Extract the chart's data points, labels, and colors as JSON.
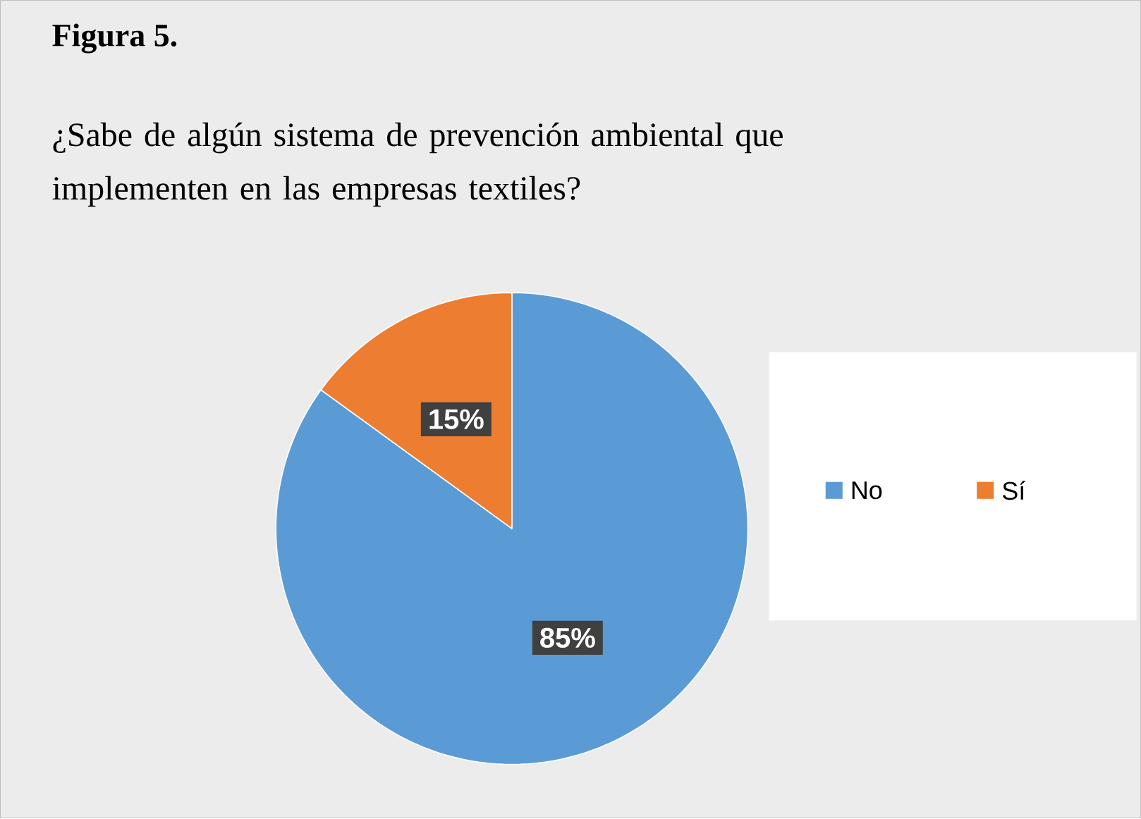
{
  "chart_data": {
    "type": "pie",
    "title": "Figura 5.",
    "subtitle": "¿Sabe de algún sistema de prevención ambiental que implementen en las empresas textiles?",
    "categories": [
      "No",
      "Sí"
    ],
    "values": [
      85,
      15
    ],
    "colors": [
      "#5b9bd5",
      "#ed7d31"
    ],
    "value_labels": [
      "85%",
      "15%"
    ],
    "legend": "right"
  }
}
